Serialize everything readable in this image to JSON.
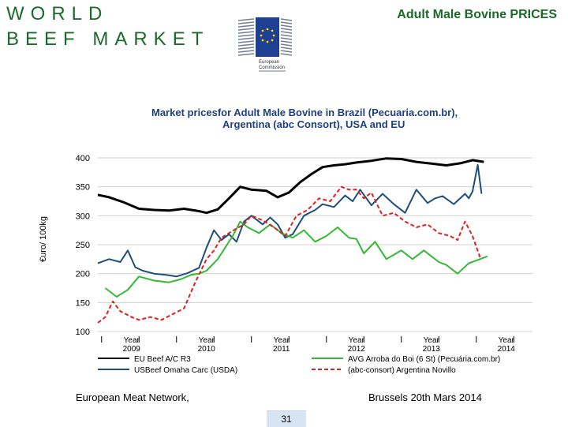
{
  "header": {
    "line1": "WORLD",
    "line2": "BEEF MARKET",
    "right_title": "Adult Male Bovine PRICES",
    "logo_text1": "European",
    "logo_text2": "Commission",
    "green": "#1b6a2a"
  },
  "footer": {
    "left": "European Meat Network,",
    "right": "Brussels 20th Mars 2014",
    "page": "31"
  },
  "chart_data": {
    "type": "line",
    "title_line1": "Market pricesfor Adult Male Bovine in Brazil (Pecuaria.com.br),",
    "title_line2": "Argentina (abc Consort), USA and EU",
    "ylabel": "€uro/ 100kg",
    "ylim": [
      100,
      400
    ],
    "yticks": [
      100,
      150,
      200,
      250,
      300,
      350,
      400
    ],
    "xlim": [
      2008.55,
      2014.35
    ],
    "year_ticks": [
      {
        "label1": "Year",
        "label2": "2009",
        "pos": 2009
      },
      {
        "label1": "Year",
        "label2": "2010",
        "pos": 2010
      },
      {
        "label1": "Year",
        "label2": "2011",
        "pos": 2011
      },
      {
        "label1": "Year",
        "label2": "2012",
        "pos": 2012
      },
      {
        "label1": "Year",
        "label2": "2013",
        "pos": 2013
      },
      {
        "label1": "Year",
        "label2": "2014",
        "pos": 2014
      }
    ],
    "series": [
      {
        "name": "EU Beef A/C R3",
        "color": "#000000",
        "style": "solid",
        "x": [
          2008.55,
          2008.7,
          2008.9,
          2009.1,
          2009.3,
          2009.5,
          2009.7,
          2009.9,
          2010.0,
          2010.15,
          2010.3,
          2010.45,
          2010.6,
          2010.8,
          2010.95,
          2011.1,
          2011.25,
          2011.4,
          2011.55,
          2011.7,
          2011.85,
          2012.0,
          2012.2,
          2012.4,
          2012.6,
          2012.8,
          2013.0,
          2013.2,
          2013.4,
          2013.55,
          2013.7
        ],
        "values": [
          336,
          332,
          323,
          312,
          310,
          309,
          312,
          308,
          305,
          311,
          330,
          350,
          345,
          343,
          332,
          340,
          358,
          372,
          384,
          387,
          389,
          392,
          395,
          399,
          398,
          393,
          390,
          387,
          391,
          396,
          393
        ]
      },
      {
        "name": "USBeef Omaha Carc (USDA)",
        "color": "#1f4e79",
        "style": "solid",
        "x": [
          2008.55,
          2008.7,
          2008.85,
          2008.95,
          2009.05,
          2009.15,
          2009.3,
          2009.45,
          2009.6,
          2009.75,
          2009.9,
          2010.0,
          2010.1,
          2010.2,
          2010.3,
          2010.4,
          2010.5,
          2010.6,
          2010.75,
          2010.85,
          2010.95,
          2011.05,
          2011.15,
          2011.3,
          2011.45,
          2011.55,
          2011.7,
          2011.85,
          2011.95,
          2012.05,
          2012.2,
          2012.35,
          2012.5,
          2012.65,
          2012.8,
          2012.95,
          2013.05,
          2013.15,
          2013.3,
          2013.45,
          2013.5,
          2013.55,
          2013.62,
          2013.67
        ],
        "values": [
          218,
          225,
          220,
          240,
          211,
          205,
          200,
          198,
          195,
          201,
          210,
          245,
          275,
          258,
          268,
          255,
          290,
          300,
          285,
          297,
          285,
          262,
          268,
          300,
          310,
          320,
          315,
          335,
          325,
          345,
          318,
          338,
          320,
          305,
          345,
          322,
          330,
          334,
          320,
          338,
          330,
          342,
          388,
          338
        ]
      },
      {
        "name": "AVG Arroba do Boi (6 St) (Pecuária.com.br)",
        "color": "#33bb33",
        "style": "solid",
        "x": [
          2008.65,
          2008.8,
          2008.95,
          2009.1,
          2009.3,
          2009.5,
          2009.65,
          2009.8,
          2009.9,
          2010.0,
          2010.15,
          2010.25,
          2010.35,
          2010.45,
          2010.55,
          2010.7,
          2010.85,
          2011.0,
          2011.15,
          2011.3,
          2011.45,
          2011.6,
          2011.75,
          2011.9,
          2012.0,
          2012.1,
          2012.25,
          2012.4,
          2012.6,
          2012.75,
          2012.9,
          2013.1,
          2013.2,
          2013.35,
          2013.5,
          2013.65,
          2013.75
        ],
        "values": [
          175,
          160,
          172,
          195,
          188,
          185,
          190,
          198,
          200,
          205,
          225,
          245,
          265,
          290,
          280,
          270,
          285,
          270,
          262,
          275,
          255,
          265,
          280,
          262,
          260,
          235,
          255,
          225,
          240,
          225,
          240,
          220,
          215,
          200,
          218,
          225,
          230
        ]
      },
      {
        "name": "(abc-consort) Argentina Novillo",
        "color": "#e02020",
        "style": "dashed",
        "x": [
          2008.55,
          2008.65,
          2008.75,
          2008.85,
          2009.0,
          2009.1,
          2009.25,
          2009.4,
          2009.55,
          2009.7,
          2009.85,
          2010.0,
          2010.1,
          2010.2,
          2010.3,
          2010.4,
          2010.5,
          2010.6,
          2010.75,
          2010.9,
          2011.05,
          2011.2,
          2011.35,
          2011.5,
          2011.65,
          2011.8,
          2011.9,
          2012.0,
          2012.1,
          2012.2,
          2012.35,
          2012.5,
          2012.65,
          2012.8,
          2012.95,
          2013.1,
          2013.25,
          2013.35,
          2013.45,
          2013.55,
          2013.65
        ],
        "values": [
          115,
          125,
          152,
          135,
          125,
          120,
          125,
          120,
          130,
          140,
          185,
          225,
          240,
          262,
          270,
          278,
          285,
          300,
          292,
          280,
          265,
          300,
          310,
          330,
          325,
          350,
          345,
          345,
          330,
          340,
          300,
          305,
          290,
          280,
          285,
          270,
          265,
          258,
          290,
          265,
          228
        ]
      }
    ]
  }
}
